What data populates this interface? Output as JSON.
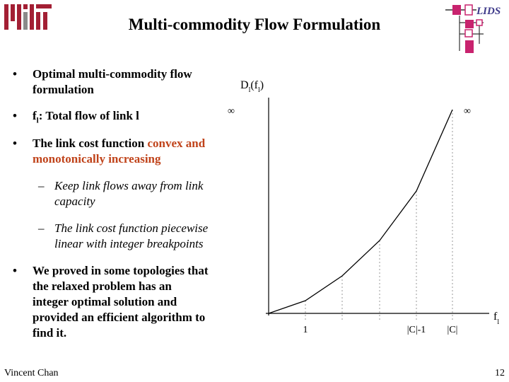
{
  "slide": {
    "title": "Multi-commodity Flow Formulation",
    "page_number": "12",
    "author": "Vincent Chan",
    "logos": {
      "left": "MIT",
      "right": "LIDS"
    }
  },
  "bullets": [
    {
      "lines": [
        "Optimal multi-commodity flow",
        "formulation"
      ]
    },
    {
      "lines": [
        "f",
        ": Total flow of link l"
      ],
      "subscript": "l"
    },
    {
      "lines": [
        "The link cost function ",
        "convex and",
        "monotonically increasing"
      ]
    },
    {
      "lines": [
        "We proved in some topologies that",
        "the relaxed problem has an",
        "integer optimal solution and",
        "provided an efficient algorithm to",
        "find it."
      ]
    }
  ],
  "sub_bullets": [
    {
      "lines": [
        "Keep link flows away from link",
        "capacity"
      ]
    },
    {
      "lines": [
        "The link cost function piecewise",
        "linear with integer breakpoints"
      ]
    }
  ],
  "chart_data": {
    "type": "line",
    "y_label": "D",
    "y_label_sub": "l",
    "y_label_arg": "(f",
    "y_label_arg_sub": "l",
    "y_label_close": ")",
    "x_label": "f",
    "x_label_sub": "l",
    "infinity_left": "∞",
    "infinity_right": "∞",
    "tick_labels": [
      "1",
      "|C|-1",
      "|C|"
    ],
    "grid": "dotted vertical lines at breakpoints",
    "shape": "convex, monotonically increasing, piecewise linear"
  },
  "colors": {
    "accent": "#c0431a",
    "mit_red": "#a31f34",
    "lids_magenta": "#c8236e"
  }
}
